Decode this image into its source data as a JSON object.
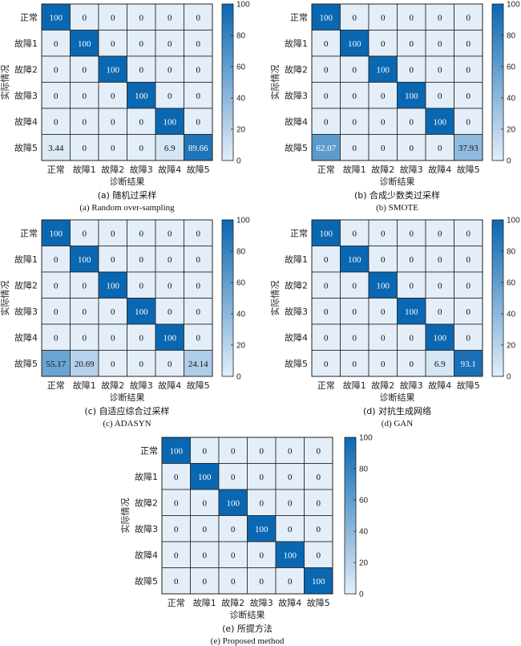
{
  "colors": {
    "low": "#e3eef9",
    "high": "#0a67b1",
    "grid": "#222222"
  },
  "chart_data": [
    {
      "type": "heatmap",
      "categories": [
        "正常",
        "故障1",
        "故障2",
        "故障3",
        "故障4",
        "故障5"
      ],
      "xlabel": "诊断结果",
      "ylabel": "实际情况",
      "caption_cn": "(a) 随机过采样",
      "caption_en": "(a) Random over-sampling",
      "colorbar_ticks": [
        0,
        20,
        40,
        60,
        80,
        100
      ],
      "values": [
        [
          "100",
          "0",
          "0",
          "0",
          "0",
          "0"
        ],
        [
          "0",
          "100",
          "0",
          "0",
          "0",
          "0"
        ],
        [
          "0",
          "0",
          "100",
          "0",
          "0",
          "0"
        ],
        [
          "0",
          "0",
          "0",
          "100",
          "0",
          "0"
        ],
        [
          "0",
          "0",
          "0",
          "0",
          "100",
          "0"
        ],
        [
          "3.44",
          "0",
          "0",
          "0",
          "6.9",
          "89.66"
        ]
      ]
    },
    {
      "type": "heatmap",
      "categories": [
        "正常",
        "故障1",
        "故障2",
        "故障3",
        "故障4",
        "故障5"
      ],
      "xlabel": "诊断结果",
      "ylabel": "实际情况",
      "caption_cn": "(b) 合成少数类过采样",
      "caption_en": "(b) SMOTE",
      "colorbar_ticks": [
        0,
        20,
        40,
        60,
        80,
        100
      ],
      "values": [
        [
          "100",
          "0",
          "0",
          "0",
          "0",
          "0"
        ],
        [
          "0",
          "100",
          "0",
          "0",
          "0",
          "0"
        ],
        [
          "0",
          "0",
          "100",
          "0",
          "0",
          "0"
        ],
        [
          "0",
          "0",
          "0",
          "100",
          "0",
          "0"
        ],
        [
          "0",
          "0",
          "0",
          "0",
          "100",
          "0"
        ],
        [
          "62.07",
          "0",
          "0",
          "0",
          "0",
          "37.93"
        ]
      ]
    },
    {
      "type": "heatmap",
      "categories": [
        "正常",
        "故障1",
        "故障2",
        "故障3",
        "故障4",
        "故障5"
      ],
      "xlabel": "诊断结果",
      "ylabel": "实际情况",
      "caption_cn": "(c) 自适应综合过采样",
      "caption_en": "(c) ADASYN",
      "colorbar_ticks": [
        0,
        20,
        40,
        60,
        80,
        100
      ],
      "values": [
        [
          "100",
          "0",
          "0",
          "0",
          "0",
          "0"
        ],
        [
          "0",
          "100",
          "0",
          "0",
          "0",
          "0"
        ],
        [
          "0",
          "0",
          "100",
          "0",
          "0",
          "0"
        ],
        [
          "0",
          "0",
          "0",
          "100",
          "0",
          "0"
        ],
        [
          "0",
          "0",
          "0",
          "0",
          "100",
          "0"
        ],
        [
          "55.17",
          "20.69",
          "0",
          "0",
          "0",
          "24.14"
        ]
      ]
    },
    {
      "type": "heatmap",
      "categories": [
        "正常",
        "故障1",
        "故障2",
        "故障3",
        "故障4",
        "故障5"
      ],
      "xlabel": "诊断结果",
      "ylabel": "实际情况",
      "caption_cn": "(d) 对抗生成网络",
      "caption_en": "(d) GAN",
      "colorbar_ticks": [
        0,
        20,
        40,
        60,
        80,
        100
      ],
      "values": [
        [
          "100",
          "0",
          "0",
          "0",
          "0",
          "0"
        ],
        [
          "0",
          "100",
          "0",
          "0",
          "0",
          "0"
        ],
        [
          "0",
          "0",
          "100",
          "0",
          "0",
          "0"
        ],
        [
          "0",
          "0",
          "0",
          "100",
          "0",
          "0"
        ],
        [
          "0",
          "0",
          "0",
          "0",
          "100",
          "0"
        ],
        [
          "0",
          "0",
          "0",
          "0",
          "6.9",
          "93.1"
        ]
      ]
    },
    {
      "type": "heatmap",
      "categories": [
        "正常",
        "故障1",
        "故障2",
        "故障3",
        "故障4",
        "故障5"
      ],
      "xlabel": "诊断结果",
      "ylabel": "实际情况",
      "caption_cn": "(e) 所提方法",
      "caption_en": "(e) Proposed method",
      "colorbar_ticks": [
        0,
        20,
        40,
        60,
        80,
        100
      ],
      "values": [
        [
          "100",
          "0",
          "0",
          "0",
          "0",
          "0"
        ],
        [
          "0",
          "100",
          "0",
          "0",
          "0",
          "0"
        ],
        [
          "0",
          "0",
          "100",
          "0",
          "0",
          "0"
        ],
        [
          "0",
          "0",
          "0",
          "100",
          "0",
          "0"
        ],
        [
          "0",
          "0",
          "0",
          "0",
          "100",
          "0"
        ],
        [
          "0",
          "0",
          "0",
          "0",
          "0",
          "100"
        ]
      ]
    }
  ]
}
